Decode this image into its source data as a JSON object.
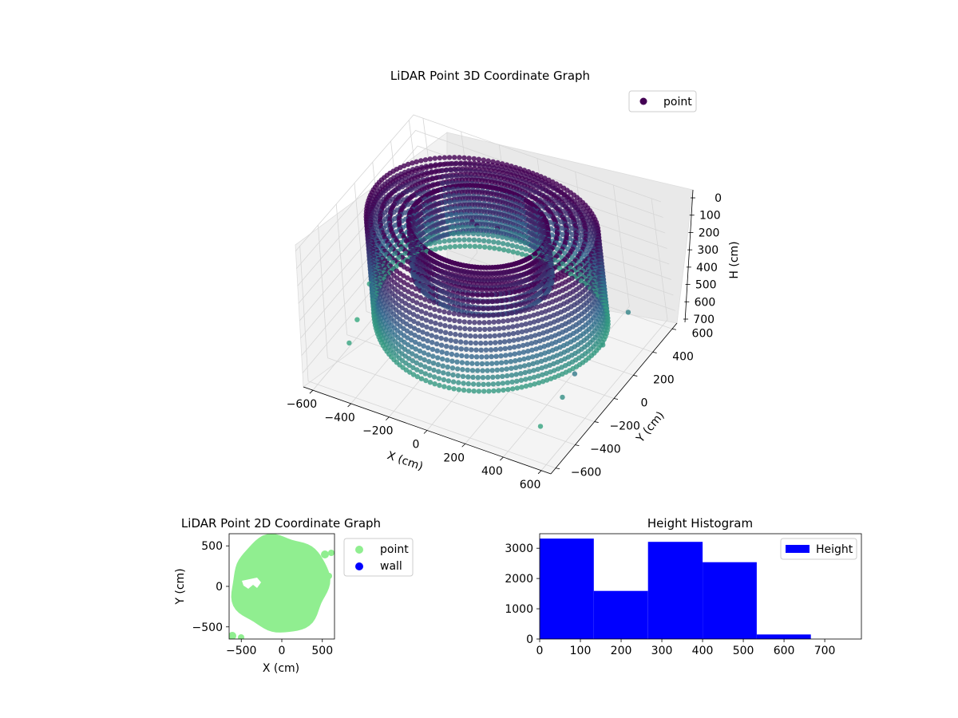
{
  "colors": {
    "point_dark": "#440154",
    "point_mid": "#31688e",
    "point_light": "#35b779",
    "scatter2d_point": "#90ee90",
    "scatter2d_wall": "#0000ff",
    "histogram": "#0000ff"
  },
  "chart_data": [
    {
      "type": "scatter3d",
      "title": "LiDAR Point 3D Coordinate Graph",
      "xlabel": "X (cm)",
      "ylabel": "Y (cm)",
      "zlabel": "H (cm)",
      "xlim": [
        -650,
        650
      ],
      "ylim": [
        -650,
        650
      ],
      "zlim": [
        780,
        0
      ],
      "x_ticks": [
        "−600",
        "−400",
        "−200",
        "0",
        "200",
        "400",
        "600"
      ],
      "y_ticks": [
        "−600",
        "−400",
        "−200",
        "0",
        "200",
        "400",
        "600"
      ],
      "z_ticks": [
        "0",
        "100",
        "200",
        "300",
        "400",
        "500",
        "600",
        "700"
      ],
      "legend": {
        "entries": [
          "point"
        ],
        "placement": "top-right"
      },
      "grid": true,
      "structure": {
        "shape": "ring",
        "outer_radius": 550,
        "inner_radius": 330,
        "height_range": [
          0,
          620
        ]
      }
    },
    {
      "type": "scatter",
      "title": "LiDAR Point 2D Coordinate Graph",
      "xlabel": "X (cm)",
      "ylabel": "Y (cm)",
      "xlim": [
        -650,
        650
      ],
      "ylim": [
        -650,
        650
      ],
      "x_ticks": [
        "−500",
        "0",
        "500"
      ],
      "y_ticks": [
        "−500",
        "0",
        "500"
      ],
      "legend": {
        "entries": [
          "point",
          "wall"
        ],
        "placement": "outside-right"
      },
      "series": [
        {
          "name": "point",
          "shape": "disc",
          "radius": 600
        },
        {
          "name": "wall",
          "points": []
        }
      ]
    },
    {
      "type": "bar",
      "title": "Height Histogram",
      "bins": [
        [
          0,
          133
        ],
        [
          133,
          266
        ],
        [
          266,
          400
        ],
        [
          400,
          533
        ],
        [
          533,
          666
        ],
        [
          666,
          800
        ]
      ],
      "values": [
        3320,
        1590,
        3210,
        2540,
        150,
        0
      ],
      "xlim": [
        0,
        790
      ],
      "ylim": [
        0,
        3480
      ],
      "x_ticks": [
        "0",
        "100",
        "200",
        "300",
        "400",
        "500",
        "600",
        "700"
      ],
      "y_ticks": [
        "0",
        "1000",
        "2000",
        "3000"
      ],
      "legend": {
        "entries": [
          "Height"
        ],
        "placement": "top-right"
      }
    }
  ]
}
